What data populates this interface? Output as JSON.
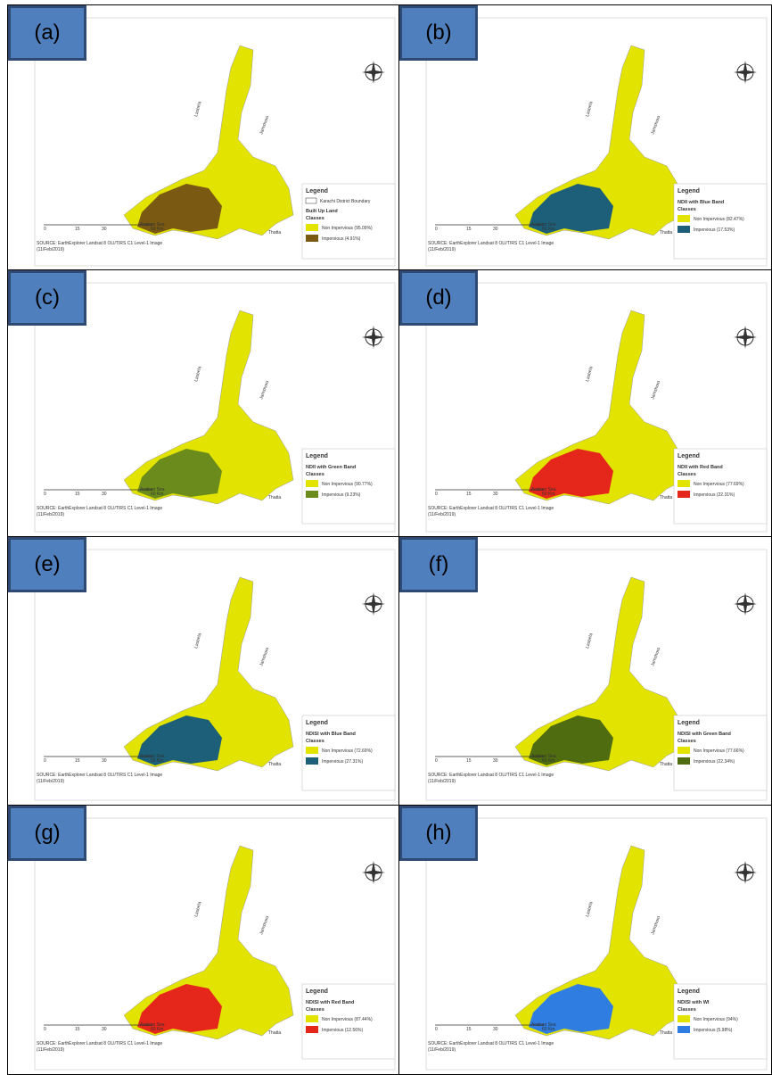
{
  "common": {
    "legend": "Legend",
    "classes": "Classes",
    "sea": "Arabian Sea",
    "thatta": "Thatta",
    "lasbela": "Lasbela",
    "jamshoro": "Jamshoro",
    "scale": [
      "0",
      "15",
      "30",
      "60 Km"
    ],
    "source": "SOURCE: EarthExplorer Landsat 8 OLI/TIRS C1 Level-1 Image",
    "date": "(11/Feb/2019)"
  },
  "panels": [
    {
      "label": "(a)",
      "boundary": "Karachi District Boundary",
      "legend_title": "Built Up Land",
      "classes": [
        {
          "name": "Non Impervious (95.09%)",
          "color": "#e3e300"
        },
        {
          "name": "Impervious (4.91%)",
          "color": "#7a5a12"
        }
      ]
    },
    {
      "label": "(b)",
      "legend_title": "NDII with Blue Band",
      "classes": [
        {
          "name": "Non Impervious (82.47%)",
          "color": "#e3e300"
        },
        {
          "name": "Impervious (17.53%)",
          "color": "#1d5f78"
        }
      ]
    },
    {
      "label": "(c)",
      "legend_title": "NDII with Green Band",
      "classes": [
        {
          "name": "Non Impervious (90.77%)",
          "color": "#e3e300"
        },
        {
          "name": "Impervious (9.23%)",
          "color": "#6b8c1c"
        }
      ]
    },
    {
      "label": "(d)",
      "legend_title": "NDII with Red Band",
      "classes": [
        {
          "name": "Non Impervious (77.69%)",
          "color": "#e3e300"
        },
        {
          "name": "Impervious (22.31%)",
          "color": "#e5261b"
        }
      ]
    },
    {
      "label": "(e)",
      "legend_title": "NDISI with Blue Band",
      "classes": [
        {
          "name": "Non Impervious (72.69%)",
          "color": "#e3e300"
        },
        {
          "name": "Impervious (27.31%)",
          "color": "#1d5f78"
        }
      ]
    },
    {
      "label": "(f)",
      "legend_title": "NDISI with Green Band",
      "classes": [
        {
          "name": "Non Impervious (77.66%)",
          "color": "#e3e300"
        },
        {
          "name": "Impervious (22.34%)",
          "color": "#4f6c10"
        }
      ]
    },
    {
      "label": "(g)",
      "legend_title": "NDISI with Red Band",
      "classes": [
        {
          "name": "Non Impervious (87.44%)",
          "color": "#e3e300"
        },
        {
          "name": "Impervious (12.56%)",
          "color": "#e5261b"
        }
      ]
    },
    {
      "label": "(h)",
      "legend_title": "NDISI with WI",
      "classes": [
        {
          "name": "Non Impervious (94%)",
          "color": "#e3e300"
        },
        {
          "name": "Impervious (5.98%)",
          "color": "#2f7de0"
        }
      ]
    }
  ]
}
